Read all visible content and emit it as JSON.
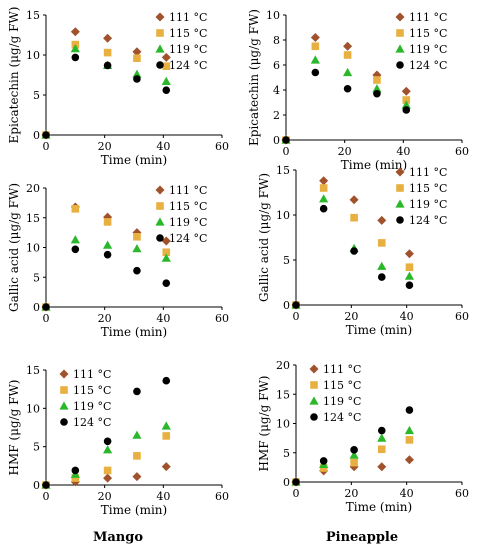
{
  "legend": [
    "111 °C",
    "115 °C",
    "119 °C",
    "124 °C"
  ],
  "series_colors": [
    "#a0522d",
    "#e8b040",
    "#2ab82a",
    "#000000"
  ],
  "captions": {
    "left": "Mango",
    "right": "Pineapple"
  },
  "chart_data": [
    {
      "type": "scatter",
      "fruit": "Mango",
      "xlabel": "Time (min)",
      "ylabel": "Epicatechin (μg/g FW)",
      "xlim": [
        0,
        60
      ],
      "ylim": [
        0,
        15
      ],
      "xticks": [
        0,
        20,
        40,
        60
      ],
      "yticks": [
        0,
        5,
        10,
        15
      ],
      "legend_position": "top-right",
      "x": [
        0,
        10,
        21,
        31,
        41
      ],
      "series": [
        {
          "values": [
            0,
            12.9,
            12.1,
            10.4,
            9.7
          ]
        },
        {
          "values": [
            0,
            11.3,
            10.3,
            9.6,
            8.6
          ]
        },
        {
          "values": [
            0,
            10.8,
            8.7,
            7.6,
            6.7
          ]
        },
        {
          "values": [
            0,
            9.7,
            8.7,
            7.0,
            5.6
          ]
        }
      ]
    },
    {
      "type": "scatter",
      "fruit": "Pineapple",
      "xlabel": "Time (min)",
      "ylabel": "Epicatechin (μg/g FW)",
      "xlim": [
        0,
        60
      ],
      "ylim": [
        0,
        10
      ],
      "xticks": [
        0,
        20,
        40,
        60
      ],
      "yticks": [
        0,
        2,
        4,
        6,
        8,
        10
      ],
      "legend_position": "top-right",
      "x": [
        0,
        10,
        21,
        31,
        41
      ],
      "series": [
        {
          "values": [
            0,
            8.2,
            7.5,
            5.2,
            3.9
          ]
        },
        {
          "values": [
            0,
            7.5,
            6.8,
            4.8,
            3.2
          ]
        },
        {
          "values": [
            0,
            6.4,
            5.4,
            4.1,
            2.8
          ]
        },
        {
          "values": [
            0,
            5.4,
            4.1,
            3.7,
            2.4
          ]
        }
      ]
    },
    {
      "type": "scatter",
      "fruit": "Mango",
      "xlabel": "Time (min)",
      "ylabel": "Gallic acid (μg/g FW)",
      "xlim": [
        0,
        60
      ],
      "ylim": [
        0,
        20
      ],
      "xticks": [
        0,
        20,
        40,
        60
      ],
      "yticks": [
        0,
        5,
        10,
        15,
        20
      ],
      "legend_position": "top-right",
      "x": [
        0,
        10,
        21,
        31,
        41
      ],
      "series": [
        {
          "values": [
            0,
            16.8,
            15.1,
            12.5,
            11.1
          ]
        },
        {
          "values": [
            0,
            16.5,
            14.3,
            11.8,
            9.2
          ]
        },
        {
          "values": [
            0,
            11.3,
            10.4,
            9.8,
            8.2
          ]
        },
        {
          "values": [
            0,
            9.7,
            8.8,
            6.1,
            4.0
          ]
        }
      ]
    },
    {
      "type": "scatter",
      "fruit": "Pineapple",
      "xlabel": "Time (min)",
      "ylabel": "Gallic acid (μg/g FW)",
      "xlim": [
        0,
        60
      ],
      "ylim": [
        0,
        15
      ],
      "xticks": [
        0,
        20,
        40,
        60
      ],
      "yticks": [
        0,
        5,
        10,
        15
      ],
      "legend_position": "top-right",
      "x": [
        0,
        10,
        21,
        31,
        41
      ],
      "series": [
        {
          "values": [
            0,
            13.8,
            11.7,
            9.4,
            5.7
          ]
        },
        {
          "values": [
            0,
            13.0,
            9.7,
            6.9,
            4.2
          ]
        },
        {
          "values": [
            0,
            11.8,
            6.3,
            4.3,
            3.2
          ]
        },
        {
          "values": [
            0,
            10.7,
            6.0,
            3.1,
            2.2
          ]
        }
      ]
    },
    {
      "type": "scatter",
      "fruit": "Mango",
      "xlabel": "Time (min)",
      "ylabel": "HMF (μg/g FW)",
      "xlim": [
        0,
        60
      ],
      "ylim": [
        0,
        15
      ],
      "xticks": [
        0,
        20,
        40,
        60
      ],
      "yticks": [
        0,
        5,
        10,
        15
      ],
      "legend_position": "top-left",
      "x": [
        0,
        10,
        21,
        31,
        41
      ],
      "series": [
        {
          "values": [
            0,
            0.4,
            0.9,
            1.1,
            2.4
          ]
        },
        {
          "values": [
            0,
            0.9,
            1.9,
            3.8,
            6.4
          ]
        },
        {
          "values": [
            0,
            1.4,
            4.6,
            6.5,
            7.7
          ]
        },
        {
          "values": [
            0,
            1.9,
            5.7,
            12.2,
            13.6
          ]
        }
      ]
    },
    {
      "type": "scatter",
      "fruit": "Pineapple",
      "xlabel": "Time (min)",
      "ylabel": "HMF (μg/g FW)",
      "xlim": [
        0,
        60
      ],
      "ylim": [
        0,
        20
      ],
      "xticks": [
        0,
        20,
        40,
        60
      ],
      "yticks": [
        0,
        5,
        10,
        15,
        20
      ],
      "legend_position": "top-left",
      "x": [
        0,
        10,
        21,
        31,
        41
      ],
      "series": [
        {
          "values": [
            0,
            1.9,
            2.6,
            2.6,
            3.8
          ]
        },
        {
          "values": [
            0,
            2.4,
            3.3,
            5.6,
            7.2
          ]
        },
        {
          "values": [
            0,
            3.0,
            4.6,
            7.5,
            8.8
          ]
        },
        {
          "values": [
            0,
            3.6,
            5.5,
            8.8,
            12.3
          ]
        }
      ]
    }
  ]
}
